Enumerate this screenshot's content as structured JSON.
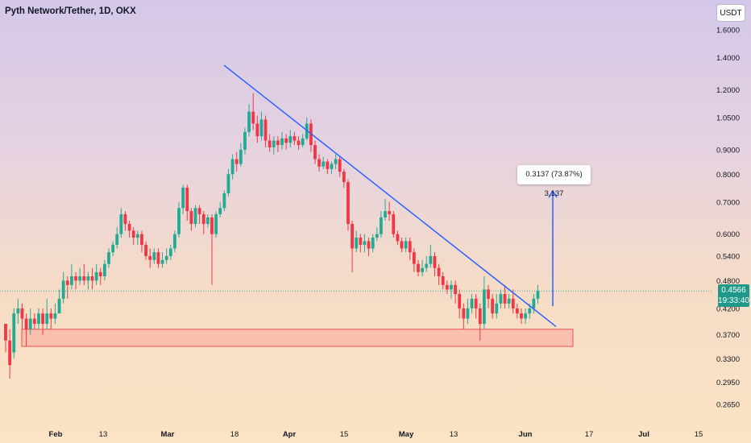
{
  "header": {
    "title": "Pyth Network/Tether, 1D, OKX",
    "currency_button": "USDT"
  },
  "measure_label": "0.3137 (73.87%) 3,137",
  "last_price": {
    "value": "0.4566",
    "countdown": "19:33:40"
  },
  "colors": {
    "up": "#22ab94",
    "down": "#f23645",
    "trendline": "#2962ff",
    "support_zone": "#f9b6a7"
  },
  "chart_data": {
    "type": "candlestick",
    "title": "Pyth Network/Tether, 1D, OKX",
    "y_scale": "log",
    "ylim": [
      0.24,
      1.75
    ],
    "x_tick_labels": [
      "Feb",
      "13",
      "Mar",
      "18",
      "Apr",
      "15",
      "May",
      "13",
      "Jun",
      "17",
      "Jul",
      "15"
    ],
    "y_tick_labels": [
      "1.6000",
      "1.4000",
      "1.2000",
      "1.0500",
      "0.9000",
      "0.8000",
      "0.7000",
      "0.6000",
      "0.5400",
      "0.4800",
      "0.4200",
      "0.3700",
      "0.3300",
      "0.2950",
      "0.2650"
    ],
    "candles": [
      [
        0.39,
        0.36,
        0.37,
        0.34
      ],
      [
        0.36,
        0.32,
        0.38,
        0.3
      ],
      [
        0.34,
        0.41,
        0.42,
        0.33
      ],
      [
        0.41,
        0.42,
        0.44,
        0.39
      ],
      [
        0.42,
        0.4,
        0.43,
        0.38
      ],
      [
        0.4,
        0.38,
        0.41,
        0.35
      ],
      [
        0.38,
        0.4,
        0.42,
        0.37
      ],
      [
        0.4,
        0.39,
        0.41,
        0.38
      ],
      [
        0.39,
        0.41,
        0.42,
        0.38
      ],
      [
        0.41,
        0.39,
        0.42,
        0.37
      ],
      [
        0.39,
        0.41,
        0.44,
        0.38
      ],
      [
        0.41,
        0.4,
        0.42,
        0.38
      ],
      [
        0.4,
        0.41,
        0.43,
        0.39
      ],
      [
        0.41,
        0.44,
        0.46,
        0.41
      ],
      [
        0.44,
        0.48,
        0.5,
        0.43
      ],
      [
        0.48,
        0.47,
        0.49,
        0.44
      ],
      [
        0.47,
        0.49,
        0.52,
        0.46
      ],
      [
        0.49,
        0.48,
        0.5,
        0.46
      ],
      [
        0.48,
        0.49,
        0.51,
        0.47
      ],
      [
        0.49,
        0.48,
        0.52,
        0.47
      ],
      [
        0.48,
        0.49,
        0.5,
        0.46
      ],
      [
        0.49,
        0.48,
        0.51,
        0.46
      ],
      [
        0.48,
        0.5,
        0.52,
        0.47
      ],
      [
        0.5,
        0.49,
        0.51,
        0.47
      ],
      [
        0.49,
        0.52,
        0.53,
        0.48
      ],
      [
        0.52,
        0.55,
        0.56,
        0.51
      ],
      [
        0.55,
        0.57,
        0.58,
        0.54
      ],
      [
        0.57,
        0.6,
        0.62,
        0.56
      ],
      [
        0.6,
        0.66,
        0.68,
        0.59
      ],
      [
        0.66,
        0.63,
        0.67,
        0.61
      ],
      [
        0.63,
        0.61,
        0.64,
        0.59
      ],
      [
        0.61,
        0.59,
        0.62,
        0.57
      ],
      [
        0.59,
        0.6,
        0.61,
        0.57
      ],
      [
        0.6,
        0.57,
        0.61,
        0.55
      ],
      [
        0.57,
        0.54,
        0.58,
        0.53
      ],
      [
        0.54,
        0.53,
        0.56,
        0.51
      ],
      [
        0.53,
        0.55,
        0.56,
        0.52
      ],
      [
        0.55,
        0.52,
        0.56,
        0.51
      ],
      [
        0.52,
        0.53,
        0.55,
        0.51
      ],
      [
        0.53,
        0.54,
        0.56,
        0.52
      ],
      [
        0.54,
        0.56,
        0.57,
        0.53
      ],
      [
        0.56,
        0.6,
        0.61,
        0.55
      ],
      [
        0.6,
        0.68,
        0.7,
        0.59
      ],
      [
        0.68,
        0.75,
        0.76,
        0.66
      ],
      [
        0.75,
        0.67,
        0.76,
        0.64
      ],
      [
        0.67,
        0.63,
        0.68,
        0.61
      ],
      [
        0.63,
        0.68,
        0.69,
        0.62
      ],
      [
        0.68,
        0.66,
        0.69,
        0.63
      ],
      [
        0.66,
        0.63,
        0.67,
        0.6
      ],
      [
        0.63,
        0.65,
        0.66,
        0.62
      ],
      [
        0.65,
        0.6,
        0.66,
        0.47
      ],
      [
        0.6,
        0.66,
        0.67,
        0.59
      ],
      [
        0.66,
        0.68,
        0.7,
        0.65
      ],
      [
        0.68,
        0.73,
        0.74,
        0.67
      ],
      [
        0.73,
        0.8,
        0.82,
        0.72
      ],
      [
        0.8,
        0.86,
        0.88,
        0.78
      ],
      [
        0.86,
        0.84,
        0.89,
        0.81
      ],
      [
        0.84,
        0.9,
        0.93,
        0.83
      ],
      [
        0.9,
        0.98,
        1.0,
        0.88
      ],
      [
        0.98,
        1.08,
        1.12,
        0.96
      ],
      [
        1.08,
        1.02,
        1.18,
        0.99
      ],
      [
        1.02,
        0.96,
        1.06,
        0.93
      ],
      [
        0.96,
        1.04,
        1.08,
        0.94
      ],
      [
        1.04,
        0.94,
        1.06,
        0.91
      ],
      [
        0.94,
        0.91,
        0.97,
        0.89
      ],
      [
        0.91,
        0.94,
        0.96,
        0.88
      ],
      [
        0.94,
        0.92,
        0.96,
        0.89
      ],
      [
        0.92,
        0.95,
        0.98,
        0.9
      ],
      [
        0.95,
        0.93,
        0.97,
        0.9
      ],
      [
        0.93,
        0.96,
        0.99,
        0.91
      ],
      [
        0.96,
        0.94,
        0.98,
        0.92
      ],
      [
        0.94,
        0.92,
        0.96,
        0.9
      ],
      [
        0.92,
        0.95,
        0.97,
        0.91
      ],
      [
        0.95,
        1.02,
        1.05,
        0.94
      ],
      [
        1.02,
        0.92,
        1.04,
        0.89
      ],
      [
        0.92,
        0.86,
        0.94,
        0.84
      ],
      [
        0.86,
        0.83,
        0.88,
        0.81
      ],
      [
        0.83,
        0.85,
        0.87,
        0.82
      ],
      [
        0.85,
        0.82,
        0.86,
        0.8
      ],
      [
        0.82,
        0.84,
        0.85,
        0.8
      ],
      [
        0.84,
        0.86,
        0.88,
        0.82
      ],
      [
        0.86,
        0.81,
        0.87,
        0.79
      ],
      [
        0.81,
        0.77,
        0.82,
        0.75
      ],
      [
        0.77,
        0.63,
        0.78,
        0.61
      ],
      [
        0.63,
        0.56,
        0.64,
        0.5
      ],
      [
        0.56,
        0.59,
        0.61,
        0.55
      ],
      [
        0.59,
        0.57,
        0.6,
        0.55
      ],
      [
        0.57,
        0.58,
        0.6,
        0.55
      ],
      [
        0.58,
        0.56,
        0.59,
        0.54
      ],
      [
        0.56,
        0.59,
        0.6,
        0.55
      ],
      [
        0.59,
        0.6,
        0.62,
        0.58
      ],
      [
        0.6,
        0.65,
        0.67,
        0.59
      ],
      [
        0.65,
        0.67,
        0.71,
        0.64
      ],
      [
        0.67,
        0.66,
        0.7,
        0.64
      ],
      [
        0.66,
        0.6,
        0.67,
        0.59
      ],
      [
        0.6,
        0.58,
        0.61,
        0.57
      ],
      [
        0.58,
        0.56,
        0.59,
        0.55
      ],
      [
        0.56,
        0.58,
        0.59,
        0.55
      ],
      [
        0.58,
        0.55,
        0.59,
        0.53
      ],
      [
        0.55,
        0.52,
        0.56,
        0.5
      ],
      [
        0.52,
        0.5,
        0.53,
        0.49
      ],
      [
        0.5,
        0.51,
        0.53,
        0.49
      ],
      [
        0.51,
        0.52,
        0.54,
        0.5
      ],
      [
        0.52,
        0.54,
        0.57,
        0.51
      ],
      [
        0.54,
        0.51,
        0.55,
        0.49
      ],
      [
        0.51,
        0.49,
        0.52,
        0.47
      ],
      [
        0.49,
        0.47,
        0.5,
        0.46
      ],
      [
        0.47,
        0.46,
        0.48,
        0.45
      ],
      [
        0.46,
        0.47,
        0.48,
        0.44
      ],
      [
        0.47,
        0.45,
        0.48,
        0.43
      ],
      [
        0.45,
        0.42,
        0.46,
        0.4
      ],
      [
        0.42,
        0.4,
        0.43,
        0.38
      ],
      [
        0.4,
        0.42,
        0.44,
        0.39
      ],
      [
        0.42,
        0.44,
        0.45,
        0.41
      ],
      [
        0.44,
        0.42,
        0.45,
        0.4
      ],
      [
        0.42,
        0.39,
        0.43,
        0.36
      ],
      [
        0.39,
        0.46,
        0.49,
        0.38
      ],
      [
        0.46,
        0.44,
        0.47,
        0.42
      ],
      [
        0.44,
        0.41,
        0.45,
        0.4
      ],
      [
        0.41,
        0.43,
        0.45,
        0.4
      ],
      [
        0.43,
        0.45,
        0.46,
        0.42
      ],
      [
        0.45,
        0.43,
        0.47,
        0.42
      ],
      [
        0.43,
        0.44,
        0.45,
        0.42
      ],
      [
        0.44,
        0.42,
        0.46,
        0.41
      ],
      [
        0.42,
        0.41,
        0.43,
        0.4
      ],
      [
        0.41,
        0.4,
        0.42,
        0.39
      ],
      [
        0.4,
        0.41,
        0.42,
        0.39
      ],
      [
        0.41,
        0.42,
        0.43,
        0.4
      ],
      [
        0.42,
        0.44,
        0.45,
        0.41
      ],
      [
        0.44,
        0.4566,
        0.47,
        0.43
      ]
    ],
    "trendline": {
      "from": [
        "Mar 14",
        1.35
      ],
      "to": [
        "Jun 8",
        0.385
      ]
    },
    "support_zone": [
      0.35,
      0.38
    ],
    "measure_projection": {
      "from": 0.4245,
      "to": 0.738,
      "label": "0.3137 (73.87%) 3,137"
    },
    "current_price": 0.4566,
    "grid": false
  }
}
